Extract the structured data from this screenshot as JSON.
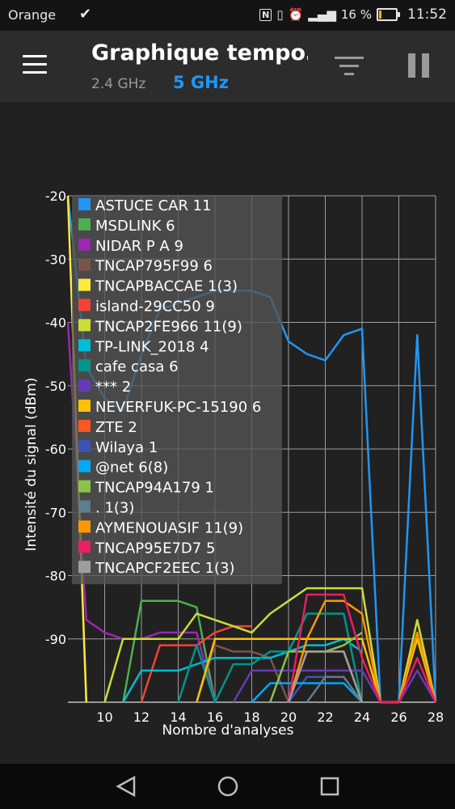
{
  "status_bar": {
    "carrier": "Orange",
    "battery": "16 %",
    "battery_level": 0.16,
    "time": "11:52",
    "icons": [
      "download-done-icon",
      "nfc-icon",
      "vibrate-icon",
      "alarm-icon",
      "signal-icon",
      "battery-icon"
    ]
  },
  "app_bar": {
    "title": "Graphique tempo…",
    "tabs": [
      {
        "label": "2.4 GHz",
        "active": false
      },
      {
        "label": "5 GHz",
        "active": true
      }
    ],
    "accent": "#2196f3",
    "icons": [
      "menu-icon",
      "filter-icon",
      "pause-icon"
    ]
  },
  "chart_data": {
    "type": "line",
    "title": "",
    "xlabel": "Nombre d'analyses",
    "ylabel": "Intensité du signal (dBm)",
    "xlim": [
      8,
      28
    ],
    "ylim": [
      -100,
      -20
    ],
    "xticks": [
      10,
      12,
      14,
      16,
      18,
      20,
      22,
      24,
      26,
      28
    ],
    "yticks": [
      -20,
      -30,
      -40,
      -50,
      -60,
      -70,
      -80,
      -90
    ],
    "grid": true,
    "legend_position": "top-left",
    "series": [
      {
        "name": "ASTUCE CAR 11",
        "color": "#2196f3",
        "x": [
          8,
          9,
          10,
          11,
          12,
          13,
          14,
          15,
          16,
          17,
          18,
          19,
          20,
          21,
          22,
          23,
          24,
          25,
          26,
          27,
          28
        ],
        "y": [
          -20,
          -47,
          -52,
          -54,
          -45,
          -38,
          -37,
          -36,
          -35,
          -35,
          -35,
          -36,
          -43,
          -45,
          -46,
          -42,
          -41,
          -100,
          -100,
          -42,
          -100
        ]
      },
      {
        "name": "MSDLINK 6",
        "color": "#4caf50",
        "x": [
          11,
          12,
          13,
          14,
          15,
          16
        ],
        "y": [
          -100,
          -84,
          -84,
          -84,
          -85,
          -100
        ]
      },
      {
        "name": "NIDAR P A 9",
        "color": "#9c27b0",
        "x": [
          8,
          9,
          10,
          11,
          12,
          13,
          14,
          15,
          16
        ],
        "y": [
          -40,
          -87,
          -89,
          -90,
          -90,
          -89,
          -89,
          -89,
          -100
        ]
      },
      {
        "name": "TNCAP795F99 6",
        "color": "#795548",
        "x": [
          15,
          16,
          17,
          18,
          19,
          20
        ],
        "y": [
          -100,
          -91,
          -92,
          -92,
          -93,
          -100
        ]
      },
      {
        "name": "TNCAPBACCAE 1(3)",
        "color": "#ffeb3b",
        "x": [
          8,
          9
        ],
        "y": [
          -20,
          -100
        ]
      },
      {
        "name": "island-29CC50 9",
        "color": "#f44336",
        "x": [
          12,
          13,
          14,
          15,
          16,
          17,
          18
        ],
        "y": [
          -100,
          -91,
          -91,
          -91,
          -89,
          -88,
          -88
        ]
      },
      {
        "name": "TNCAP2FE966 11(9)",
        "color": "#cddc39",
        "x": [
          10,
          11,
          12,
          13,
          14,
          15,
          16,
          17,
          18,
          19,
          20,
          21,
          22,
          23,
          24,
          25,
          26,
          27,
          28
        ],
        "y": [
          -100,
          -90,
          -90,
          -90,
          -90,
          -86,
          -87,
          -88,
          -89,
          -86,
          -84,
          -82,
          -82,
          -82,
          -82,
          -100,
          -100,
          -87,
          -100
        ]
      },
      {
        "name": "TP-LINK_2018 4",
        "color": "#00bcd4",
        "x": [
          11,
          12,
          13,
          14,
          15,
          16,
          17,
          18,
          19,
          20,
          21,
          22,
          23,
          24
        ],
        "y": [
          -100,
          -95,
          -95,
          -95,
          -94,
          -93,
          -93,
          -93,
          -93,
          -92,
          -91,
          -91,
          -90,
          -92
        ]
      },
      {
        "name": "cafe casa 6",
        "color": "#009688",
        "x": [
          14,
          15,
          16,
          17,
          18,
          19,
          20,
          21,
          22,
          23,
          24
        ],
        "y": [
          -100,
          -91,
          -100,
          -94,
          -94,
          -92,
          -92,
          -86,
          -86,
          -86,
          -100
        ]
      },
      {
        "name": "*** 2",
        "color": "#673ab7",
        "x": [
          17,
          18,
          19,
          20,
          21,
          22,
          23,
          24,
          25,
          26,
          27,
          28
        ],
        "y": [
          -100,
          -95,
          -95,
          -95,
          -95,
          -95,
          -95,
          -95,
          -100,
          -100,
          -95,
          -100
        ]
      },
      {
        "name": "NEVERFUK-PC-15190 6",
        "color": "#ffc107",
        "x": [
          15,
          16,
          17,
          18,
          19,
          20,
          21,
          22,
          23,
          24,
          25,
          26,
          27,
          28
        ],
        "y": [
          -100,
          -90,
          -90,
          -90,
          -90,
          -90,
          -90,
          -90,
          -90,
          -90,
          -100,
          -100,
          -90,
          -100
        ]
      },
      {
        "name": "ZTE 2",
        "color": "#ff5722",
        "x": [
          20,
          21,
          22,
          23,
          24
        ],
        "y": [
          -100,
          -92,
          -92,
          -92,
          -100
        ]
      },
      {
        "name": "Wilaya 1",
        "color": "#3f51b5",
        "x": [
          20,
          21,
          22,
          23,
          24
        ],
        "y": [
          -100,
          -96,
          -96,
          -96,
          -100
        ]
      },
      {
        "name": "@net 6(8)",
        "color": "#03a9f4",
        "x": [
          18,
          19,
          20,
          21,
          22,
          23,
          24
        ],
        "y": [
          -100,
          -97,
          -97,
          -97,
          -97,
          -97,
          -100
        ]
      },
      {
        "name": "TNCAP94A179 1",
        "color": "#8bc34a",
        "x": [
          19,
          20,
          21,
          22,
          23,
          24
        ],
        "y": [
          -100,
          -92,
          -92,
          -92,
          -91,
          -89
        ]
      },
      {
        "name": ". 1(3)",
        "color": "#607d8b",
        "x": [
          21,
          22,
          23,
          24
        ],
        "y": [
          -100,
          -96,
          -96,
          -100
        ]
      },
      {
        "name": "AYMENOUASIF 11(9)",
        "color": "#ff9800",
        "x": [
          20,
          21,
          22,
          23,
          24,
          25,
          26,
          27,
          28
        ],
        "y": [
          -100,
          -90,
          -84,
          -84,
          -86,
          -100,
          -100,
          -89,
          -100
        ]
      },
      {
        "name": "TNCAP95E7D7 5",
        "color": "#e91e63",
        "x": [
          20,
          21,
          22,
          23,
          24,
          25,
          26,
          27,
          28
        ],
        "y": [
          -100,
          -83,
          -83,
          -83,
          -93,
          -100,
          -100,
          -93,
          -100
        ]
      },
      {
        "name": "TNCAPCF2EEC 1(3)",
        "color": "#9e9e9e",
        "x": [
          20,
          21,
          22,
          23,
          24
        ],
        "y": [
          -100,
          -92,
          -92,
          -92,
          -100
        ]
      }
    ]
  }
}
